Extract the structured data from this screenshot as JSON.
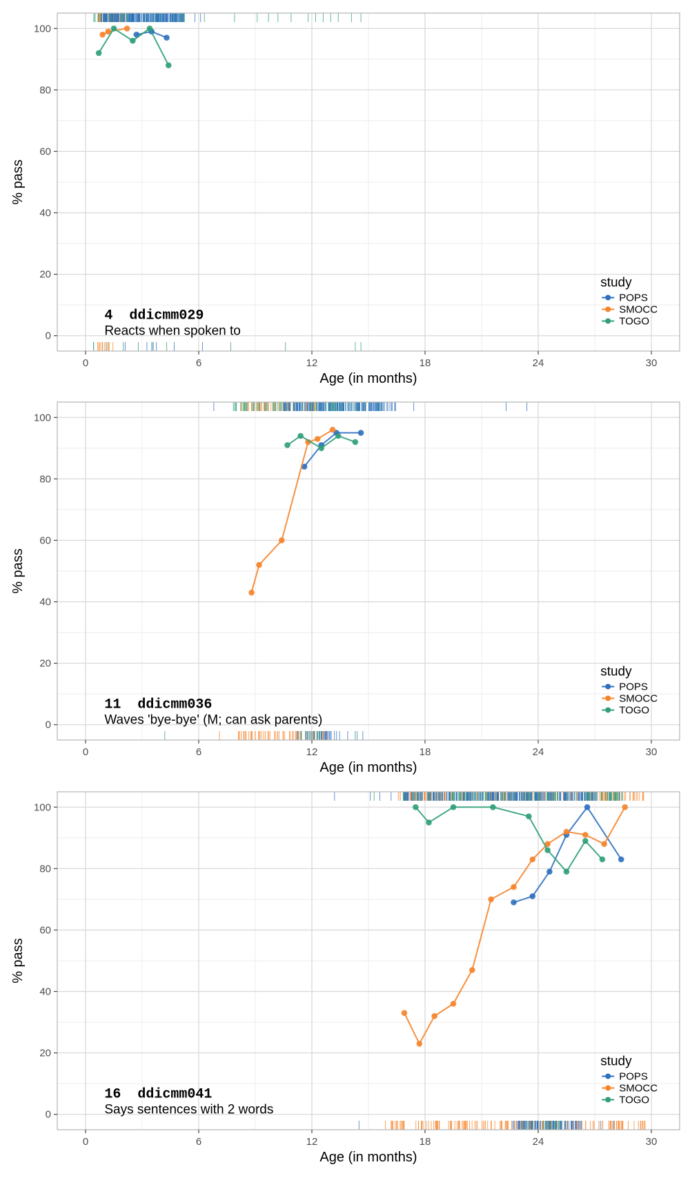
{
  "colors": {
    "POPS": "#2e6fbf",
    "SMOCC": "#f5832a",
    "TOGO": "#2f9e79",
    "grid_major": "#d9d9d9",
    "grid_minor": "#ececec",
    "panel_border": "#b3b3b3"
  },
  "chart_data": [
    {
      "type": "line",
      "item_number": "4",
      "item_code": "ddicmm029",
      "item_label": "Reacts when spoken to",
      "xlabel": "Age (in months)",
      "ylabel": "% pass",
      "xlim": [
        -1.5,
        31.5
      ],
      "ylim": [
        -5,
        105
      ],
      "xticks": [
        0,
        6,
        12,
        18,
        24,
        30
      ],
      "yticks": [
        0,
        20,
        40,
        60,
        80,
        100
      ],
      "legend_title": "study",
      "legend_entries": [
        "POPS",
        "SMOCC",
        "TOGO"
      ],
      "series": [
        {
          "name": "POPS",
          "x": [
            2.7,
            3.5,
            4.3
          ],
          "y": [
            98,
            99,
            97
          ]
        },
        {
          "name": "SMOCC",
          "x": [
            0.9,
            1.2,
            2.2
          ],
          "y": [
            98,
            99,
            100
          ]
        },
        {
          "name": "TOGO",
          "x": [
            0.7,
            1.5,
            2.5,
            3.4,
            4.4
          ],
          "y": [
            92,
            100,
            96,
            100,
            88
          ]
        }
      ],
      "rug_top": {
        "POPS": {
          "range": [
            0.8,
            5.2
          ],
          "dense": 160,
          "sparse": [
            5.8,
            6.1
          ]
        },
        "SMOCC": {
          "range": [
            0.6,
            2.1
          ],
          "dense": 40,
          "sparse": []
        },
        "TOGO": {
          "range": [
            0.3,
            5.3
          ],
          "dense": 90,
          "sparse": [
            6.3,
            7.9,
            9.1,
            9.7,
            10.2,
            10.9,
            11.8,
            12.2,
            12.6,
            13.0,
            13.4,
            14.1,
            14.6
          ]
        }
      },
      "rug_bottom": {
        "POPS": {
          "range": [
            3.2,
            4.2
          ],
          "dense": 4,
          "sparse": [
            2.1,
            4.7,
            6.2
          ]
        },
        "SMOCC": {
          "range": [
            0.6,
            1.5
          ],
          "dense": 12,
          "sparse": []
        },
        "TOGO": {
          "range": [
            0.4,
            0.5
          ],
          "dense": 2,
          "sparse": [
            1.1,
            2.0,
            2.8,
            3.6,
            4.3,
            7.7,
            10.6,
            14.3,
            14.6
          ]
        }
      }
    },
    {
      "type": "line",
      "item_number": "11",
      "item_code": "ddicmm036",
      "item_label": "Waves 'bye-bye' (M; can ask parents)",
      "xlabel": "Age (in months)",
      "ylabel": "% pass",
      "xlim": [
        -1.5,
        31.5
      ],
      "ylim": [
        -5,
        105
      ],
      "xticks": [
        0,
        6,
        12,
        18,
        24,
        30
      ],
      "yticks": [
        0,
        20,
        40,
        60,
        80,
        100
      ],
      "legend_title": "study",
      "legend_entries": [
        "POPS",
        "SMOCC",
        "TOGO"
      ],
      "series": [
        {
          "name": "POPS",
          "x": [
            11.6,
            12.5,
            13.3,
            14.6
          ],
          "y": [
            84,
            91,
            95,
            95
          ]
        },
        {
          "name": "SMOCC",
          "x": [
            8.8,
            9.2,
            10.4,
            11.8,
            12.3,
            13.1
          ],
          "y": [
            43,
            52,
            60,
            92,
            93,
            96
          ]
        },
        {
          "name": "TOGO",
          "x": [
            10.7,
            11.4,
            12.5,
            13.4,
            14.3
          ],
          "y": [
            91,
            94,
            90,
            94,
            92
          ]
        }
      ],
      "rug_top": {
        "POPS": {
          "range": [
            10.5,
            16.5
          ],
          "dense": 140,
          "sparse": [
            6.8,
            17.4,
            22.3,
            23.4
          ]
        },
        "SMOCC": {
          "range": [
            8.2,
            12.3
          ],
          "dense": 60,
          "sparse": []
        },
        "TOGO": {
          "range": [
            7.8,
            15.8
          ],
          "dense": 110,
          "sparse": []
        }
      },
      "rug_bottom": {
        "POPS": {
          "range": [
            11.0,
            13.5
          ],
          "dense": 25,
          "sparse": [
            13.9,
            14.3,
            14.7
          ]
        },
        "SMOCC": {
          "range": [
            8.0,
            12.8
          ],
          "dense": 60,
          "sparse": [
            7.1
          ]
        },
        "TOGO": {
          "range": [
            11.2,
            12.6
          ],
          "dense": 12,
          "sparse": [
            4.2,
            14.4
          ]
        }
      }
    },
    {
      "type": "line",
      "item_number": "16",
      "item_code": "ddicmm041",
      "item_label": "Says sentences with 2 words",
      "xlabel": "Age (in months)",
      "ylabel": "% pass",
      "xlim": [
        -1.5,
        31.5
      ],
      "ylim": [
        -5,
        105
      ],
      "xticks": [
        0,
        6,
        12,
        18,
        24,
        30
      ],
      "yticks": [
        0,
        20,
        40,
        60,
        80,
        100
      ],
      "legend_title": "study",
      "legend_entries": [
        "POPS",
        "SMOCC",
        "TOGO"
      ],
      "series": [
        {
          "name": "POPS",
          "x": [
            22.7,
            23.7,
            24.6,
            25.5,
            26.6,
            28.4
          ],
          "y": [
            69,
            71,
            79,
            91,
            100,
            83
          ]
        },
        {
          "name": "SMOCC",
          "x": [
            16.9,
            17.7,
            18.5,
            19.5,
            20.5,
            21.5,
            22.7,
            23.7,
            24.5,
            25.5,
            26.5,
            27.5,
            28.6
          ],
          "y": [
            33,
            23,
            32,
            36,
            47,
            70,
            74,
            83,
            88,
            92,
            91,
            88,
            100
          ]
        },
        {
          "name": "TOGO",
          "x": [
            17.5,
            18.2,
            19.5,
            21.6,
            23.5,
            24.5,
            25.5,
            26.5,
            27.4
          ],
          "y": [
            100,
            95,
            100,
            100,
            97,
            86,
            79,
            89,
            83
          ]
        }
      ],
      "rug_top": {
        "POPS": {
          "range": [
            16.8,
            27.2
          ],
          "dense": 200,
          "sparse": [
            13.2,
            15.1,
            15.6,
            16.2,
            27.8,
            28.3
          ]
        },
        "SMOCC": {
          "range": [
            16.5,
            29.8
          ],
          "dense": 180,
          "sparse": []
        },
        "TOGO": {
          "range": [
            16.8,
            28.5
          ],
          "dense": 210,
          "sparse": [
            15.3
          ]
        }
      },
      "rug_bottom": {
        "POPS": {
          "range": [
            22.6,
            26.3
          ],
          "dense": 70,
          "sparse": [
            14.5,
            27.3,
            28.0
          ]
        },
        "SMOCC": {
          "range": [
            16.2,
            29.7
          ],
          "dense": 170,
          "sparse": [
            15.9
          ]
        },
        "TOGO": {
          "range": [
            23.0,
            25.5
          ],
          "dense": 30,
          "sparse": []
        }
      }
    }
  ]
}
